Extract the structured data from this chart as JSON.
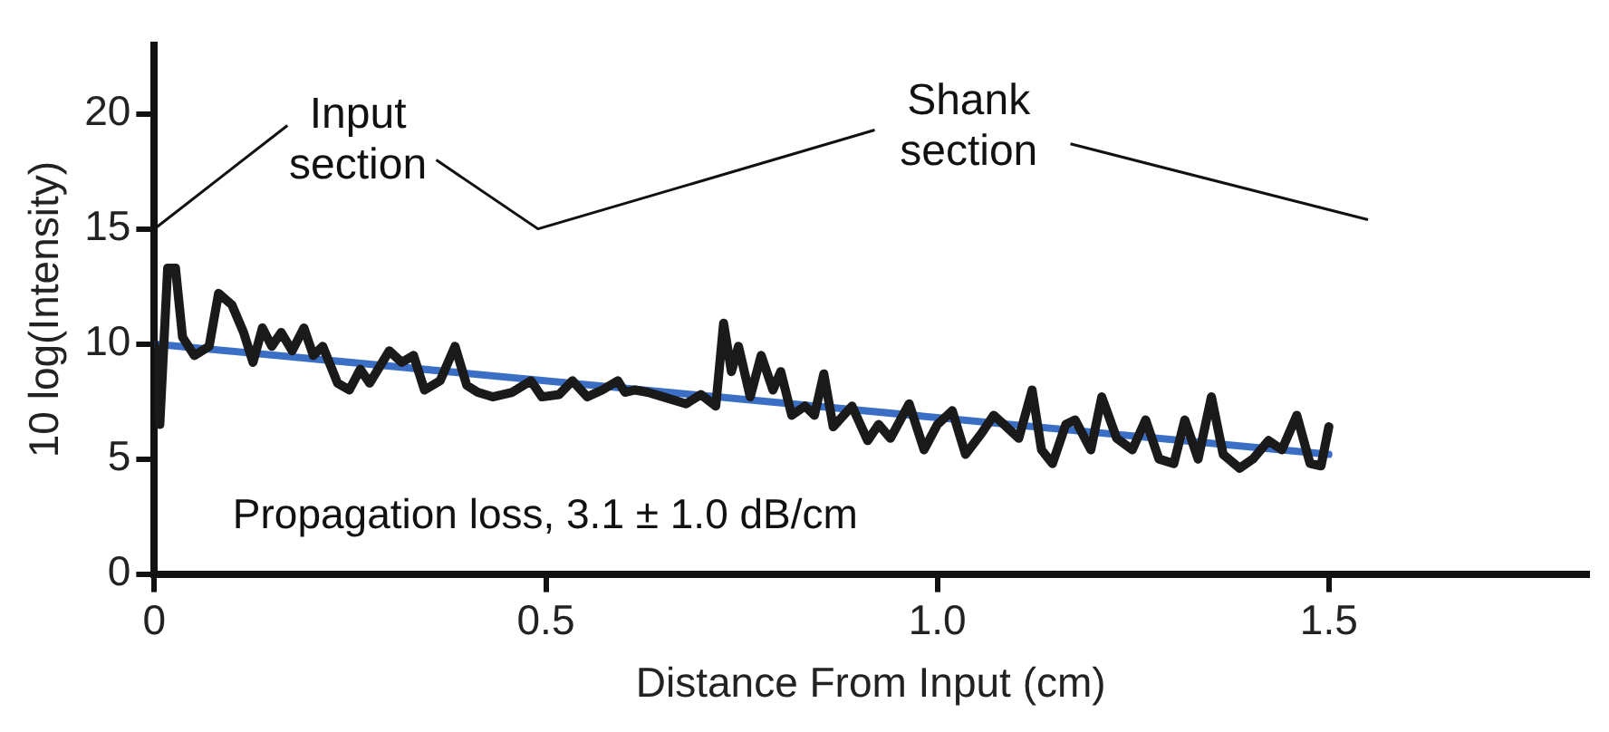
{
  "chart_data": {
    "type": "line",
    "xlabel": "Distance From Input (cm)",
    "ylabel": "10 log(Intensity)",
    "xlim": [
      0,
      1.83
    ],
    "xticks": [
      0,
      0.5,
      {
        "value": 1,
        "label": "1.0"
      },
      1.5
    ],
    "ylim": [
      0,
      23
    ],
    "yticks": [
      0,
      5,
      10,
      15,
      20
    ],
    "grid": false,
    "legend": false,
    "marker": "none",
    "line_style": "solid",
    "annotations": [
      "Input section",
      "Shank section",
      "Propagation loss, 3.1 ± 1.0 dB/cm"
    ],
    "series": [
      {
        "color": "#1a1a1a",
        "x": [
          0,
          0.007,
          0.017,
          0.027,
          0.036,
          0.051,
          0.07,
          0.082,
          0.099,
          0.114,
          0.126,
          0.138,
          0.15,
          0.162,
          0.176,
          0.191,
          0.203,
          0.215,
          0.234,
          0.249,
          0.263,
          0.275,
          0.3,
          0.316,
          0.331,
          0.345,
          0.365,
          0.384,
          0.399,
          0.413,
          0.432,
          0.457,
          0.481,
          0.495,
          0.517,
          0.534,
          0.553,
          0.572,
          0.592,
          0.601,
          0.614,
          0.63,
          0.65,
          0.679,
          0.698,
          0.717,
          0.727,
          0.737,
          0.746,
          0.761,
          0.775,
          0.79,
          0.8,
          0.814,
          0.831,
          0.843,
          0.855,
          0.867,
          0.891,
          0.911,
          0.925,
          0.94,
          0.964,
          0.983,
          1.0,
          1.019,
          1.036,
          1.056,
          1.072,
          1.085,
          1.104,
          1.121,
          1.133,
          1.147,
          1.164,
          1.176,
          1.196,
          1.21,
          1.229,
          1.249,
          1.266,
          1.283,
          1.302,
          1.316,
          1.333,
          1.35,
          1.365,
          1.386,
          1.403,
          1.423,
          1.44,
          1.459,
          1.476,
          1.49,
          1.5
        ],
        "values": [
          10.0,
          6.5,
          13.3,
          13.3,
          10.3,
          9.5,
          9.9,
          12.2,
          11.7,
          10.5,
          9.2,
          10.7,
          9.9,
          10.5,
          9.7,
          10.7,
          9.5,
          9.9,
          8.3,
          8.0,
          8.9,
          8.3,
          9.7,
          9.2,
          9.5,
          8.0,
          8.4,
          9.9,
          8.2,
          7.9,
          7.7,
          7.9,
          8.4,
          7.7,
          7.8,
          8.4,
          7.7,
          8.0,
          8.4,
          7.9,
          8.0,
          7.9,
          7.7,
          7.4,
          7.8,
          7.3,
          10.9,
          8.8,
          9.9,
          7.7,
          9.5,
          8.0,
          8.8,
          6.9,
          7.3,
          6.9,
          8.7,
          6.4,
          7.3,
          5.8,
          6.5,
          5.9,
          7.4,
          5.4,
          6.5,
          7.1,
          5.2,
          6.1,
          6.9,
          6.5,
          5.9,
          8.0,
          5.4,
          4.8,
          6.5,
          6.7,
          5.4,
          7.7,
          5.9,
          5.4,
          6.7,
          5.0,
          4.8,
          6.7,
          5.0,
          7.7,
          5.2,
          4.6,
          5.0,
          5.8,
          5.4,
          6.9,
          4.8,
          4.7,
          6.4
        ]
      },
      {
        "type": "line",
        "color": "#3b6fc6",
        "x": [
          0,
          1.5
        ],
        "values": [
          10.0,
          5.2
        ]
      }
    ]
  }
}
